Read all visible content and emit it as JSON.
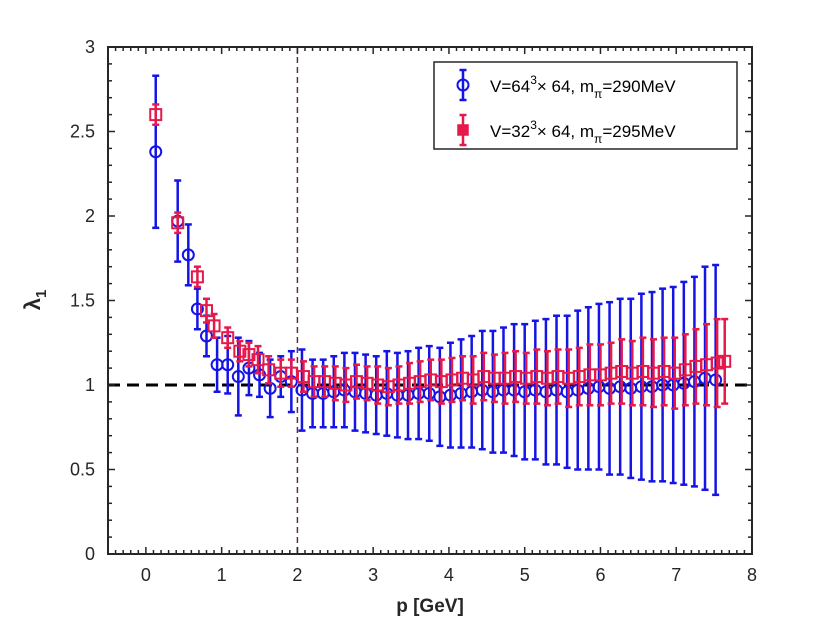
{
  "chart_data": {
    "type": "scatter",
    "title": "",
    "xlabel": "p [GeV]",
    "ylabel": "λ",
    "ylabel_subscript": "1",
    "xlim": [
      -0.5,
      8
    ],
    "ylim": [
      0,
      3
    ],
    "xticks": [
      "0",
      "1",
      "2",
      "3",
      "4",
      "5",
      "6",
      "7",
      "8"
    ],
    "yticks": [
      "0",
      "0.5",
      "1",
      "1.5",
      "2",
      "2.5",
      "3"
    ],
    "grid": false,
    "legend_position": "top-right",
    "reference_lines": [
      {
        "name": "horizontal-dashed-line-y1",
        "orientation": "horizontal",
        "value": 1,
        "color": "#000000",
        "style": "dashed"
      },
      {
        "name": "vertical-dashed-line-x2",
        "orientation": "vertical",
        "value": 2,
        "color": "#5c3150",
        "style": "dashed"
      }
    ],
    "series": [
      {
        "name": "V=64^3× 64, m_π=290MeV",
        "legend": {
          "a": "V=64",
          "sup": "3",
          "b": "× 64, m",
          "sub": "π",
          "c": "=290MeV"
        },
        "color": "#1414e6",
        "marker": "circle",
        "x": [
          0.13,
          0.42,
          0.56,
          0.68,
          0.8,
          0.94,
          1.08,
          1.22,
          1.36,
          1.5,
          1.64,
          1.78,
          1.92,
          2.06,
          2.2,
          2.34,
          2.48,
          2.62,
          2.76,
          2.9,
          3.04,
          3.18,
          3.32,
          3.46,
          3.6,
          3.74,
          3.88,
          4.02,
          4.16,
          4.3,
          4.44,
          4.58,
          4.72,
          4.86,
          5.0,
          5.14,
          5.28,
          5.42,
          5.56,
          5.7,
          5.84,
          5.98,
          6.12,
          6.26,
          6.4,
          6.54,
          6.68,
          6.82,
          6.96,
          7.1,
          7.24,
          7.38,
          7.52
        ],
        "y": [
          2.38,
          1.97,
          1.77,
          1.45,
          1.29,
          1.12,
          1.12,
          1.05,
          1.1,
          1.06,
          0.98,
          1.05,
          1.02,
          0.97,
          0.95,
          0.95,
          0.96,
          0.97,
          0.96,
          0.95,
          0.94,
          0.95,
          0.94,
          0.94,
          0.95,
          0.95,
          0.93,
          0.94,
          0.95,
          0.96,
          0.97,
          0.96,
          0.97,
          0.97,
          0.96,
          0.97,
          0.96,
          0.97,
          0.96,
          0.97,
          0.98,
          0.99,
          0.98,
          0.99,
          0.98,
          0.99,
          0.99,
          1.0,
          1.0,
          1.01,
          1.02,
          1.04,
          1.03
        ],
        "yerr": [
          0.45,
          0.24,
          0.18,
          0.12,
          0.12,
          0.16,
          0.17,
          0.23,
          0.16,
          0.13,
          0.17,
          0.12,
          0.18,
          0.24,
          0.2,
          0.2,
          0.21,
          0.22,
          0.23,
          0.23,
          0.23,
          0.25,
          0.25,
          0.26,
          0.27,
          0.28,
          0.29,
          0.31,
          0.32,
          0.33,
          0.35,
          0.36,
          0.37,
          0.39,
          0.4,
          0.41,
          0.43,
          0.44,
          0.45,
          0.47,
          0.48,
          0.49,
          0.51,
          0.52,
          0.53,
          0.55,
          0.56,
          0.57,
          0.58,
          0.6,
          0.62,
          0.66,
          0.68
        ]
      },
      {
        "name": "V=32^3× 64, m_π=295MeV",
        "legend": {
          "a": "V=32",
          "sup": "3",
          "b": "× 64, m",
          "sub": "π",
          "c": "=295MeV"
        },
        "color": "#e6194b",
        "marker": "square",
        "x": [
          0.13,
          0.42,
          0.68,
          0.8,
          0.9,
          1.08,
          1.24,
          1.36,
          1.48,
          1.62,
          1.78,
          1.92,
          2.08,
          2.22,
          2.36,
          2.5,
          2.64,
          2.78,
          2.92,
          3.06,
          3.2,
          3.34,
          3.48,
          3.62,
          3.76,
          3.9,
          4.04,
          4.18,
          4.32,
          4.46,
          4.6,
          4.74,
          4.88,
          5.02,
          5.16,
          5.3,
          5.44,
          5.58,
          5.72,
          5.86,
          6.0,
          6.14,
          6.28,
          6.42,
          6.56,
          6.7,
          6.84,
          6.98,
          7.12,
          7.26,
          7.4,
          7.54,
          7.64
        ],
        "y": [
          2.6,
          1.96,
          1.64,
          1.44,
          1.35,
          1.28,
          1.2,
          1.18,
          1.15,
          1.09,
          1.07,
          1.07,
          1.05,
          1.02,
          1.02,
          1.01,
          1.0,
          1.02,
          1.01,
          1.0,
          0.99,
          1.0,
          1.01,
          1.02,
          1.03,
          1.02,
          1.03,
          1.04,
          1.03,
          1.05,
          1.04,
          1.04,
          1.05,
          1.04,
          1.05,
          1.04,
          1.05,
          1.04,
          1.05,
          1.06,
          1.06,
          1.07,
          1.08,
          1.07,
          1.08,
          1.07,
          1.08,
          1.07,
          1.09,
          1.11,
          1.12,
          1.13,
          1.14
        ],
        "yerr": [
          0.06,
          0.06,
          0.06,
          0.07,
          0.07,
          0.06,
          0.06,
          0.07,
          0.08,
          0.08,
          0.08,
          0.08,
          0.09,
          0.09,
          0.09,
          0.1,
          0.1,
          0.1,
          0.1,
          0.11,
          0.11,
          0.11,
          0.12,
          0.12,
          0.12,
          0.13,
          0.13,
          0.13,
          0.14,
          0.14,
          0.14,
          0.15,
          0.15,
          0.15,
          0.16,
          0.16,
          0.16,
          0.17,
          0.17,
          0.18,
          0.18,
          0.18,
          0.19,
          0.19,
          0.2,
          0.2,
          0.2,
          0.21,
          0.21,
          0.22,
          0.24,
          0.26,
          0.25
        ]
      }
    ]
  }
}
